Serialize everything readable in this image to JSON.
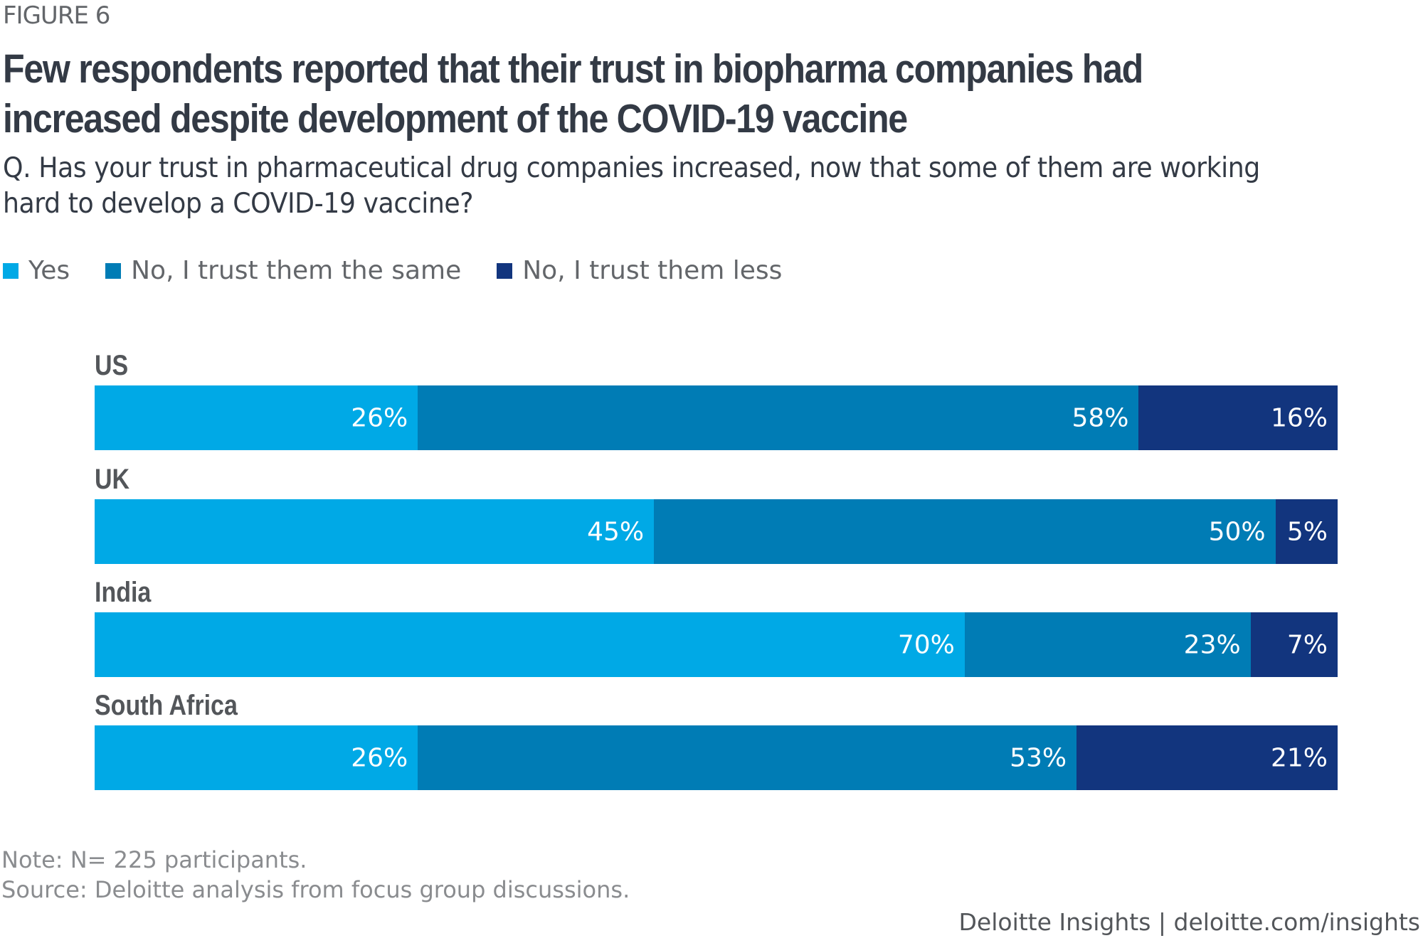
{
  "figure_label": "FIGURE 6",
  "title": "Few respondents reported that their trust in biopharma companies had increased despite development of the COVID-19 vaccine",
  "question": "Q. Has your trust in pharmaceutical drug companies increased, now that some of them are working hard to develop a COVID-19 vaccine?",
  "note": "Note: N= 225 participants.",
  "source": "Source: Deloitte analysis from focus group discussions.",
  "footer": "Deloitte Insights | deloitte.com/insights",
  "chart_data": {
    "type": "bar",
    "orientation": "horizontal",
    "stacked": true,
    "title": "Few respondents reported that their trust in biopharma companies had increased despite development of the COVID-19 vaccine",
    "xlabel": "",
    "ylabel": "",
    "xlim": [
      0,
      100
    ],
    "grid": false,
    "legend_position": "top-left",
    "categories": [
      "US",
      "UK",
      "India",
      "South Africa"
    ],
    "series": [
      {
        "name": "Yes",
        "color": "#00a9e6",
        "values": [
          26,
          45,
          70,
          26
        ],
        "labels": [
          "26%",
          "45%",
          "70%",
          "26%"
        ]
      },
      {
        "name": "No, I trust them the same",
        "color": "#007cb5",
        "values": [
          58,
          50,
          23,
          53
        ],
        "labels": [
          "58%",
          "50%",
          "23%",
          "53%"
        ]
      },
      {
        "name": "No, I trust them less",
        "color": "#12357e",
        "values": [
          16,
          5,
          7,
          21
        ],
        "labels": [
          "16%",
          "5%",
          "7%",
          "21%"
        ]
      }
    ]
  }
}
